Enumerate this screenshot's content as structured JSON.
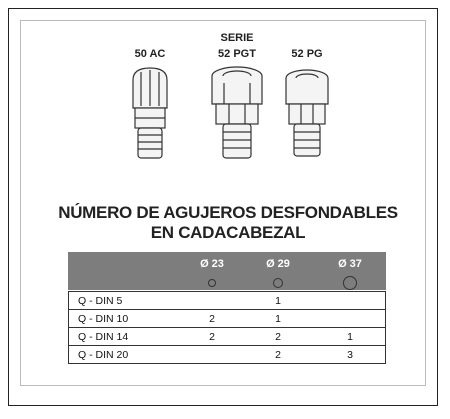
{
  "products": {
    "series_label": "SERIE",
    "items": [
      "50 AC",
      "52 PGT",
      "52 PG"
    ]
  },
  "heading": {
    "line1": "NÚMERO DE AGUJEROS DESFONDABLES",
    "line2": "EN CADACABEZAL"
  },
  "table": {
    "columns": [
      "Ø 23",
      "Ø 29",
      "Ø 37"
    ],
    "rows": [
      {
        "label": "Q - DIN 5",
        "cells": [
          null,
          1,
          null
        ]
      },
      {
        "label": "Q - DIN 10",
        "cells": [
          2,
          1,
          null
        ]
      },
      {
        "label": "Q - DIN 14",
        "cells": [
          2,
          2,
          1
        ]
      },
      {
        "label": "Q - DIN 20",
        "cells": [
          null,
          2,
          3
        ]
      }
    ]
  }
}
